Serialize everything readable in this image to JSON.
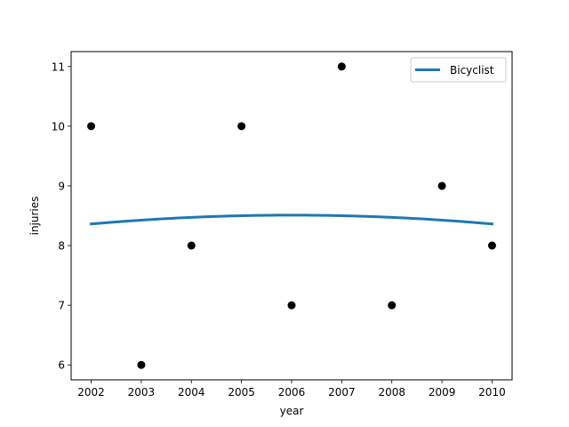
{
  "chart_data": {
    "type": "scatter",
    "title": "",
    "xlabel": "year",
    "ylabel": "injuries",
    "xlim": [
      2001.6,
      2010.4
    ],
    "ylim": [
      5.75,
      11.25
    ],
    "xticks": [
      2002,
      2003,
      2004,
      2005,
      2006,
      2007,
      2008,
      2009,
      2010
    ],
    "yticks": [
      6,
      7,
      8,
      9,
      10,
      11
    ],
    "grid": false,
    "legend": {
      "position": "top-right",
      "entries": [
        "Bicyclist"
      ]
    },
    "series": [
      {
        "kind": "points",
        "color": "#000000",
        "x": [
          2002,
          2003,
          2004,
          2005,
          2006,
          2007,
          2008,
          2009,
          2010
        ],
        "y": [
          10,
          6,
          8,
          10,
          7,
          11,
          7,
          9,
          8
        ]
      },
      {
        "name": "Bicyclist",
        "kind": "line",
        "color": "#1f77b4",
        "x": [
          2002,
          2003,
          2004,
          2005,
          2006,
          2007,
          2008,
          2009,
          2010
        ],
        "y": [
          8.36,
          8.43,
          8.47,
          8.5,
          8.51,
          8.5,
          8.47,
          8.43,
          8.36
        ]
      }
    ]
  }
}
